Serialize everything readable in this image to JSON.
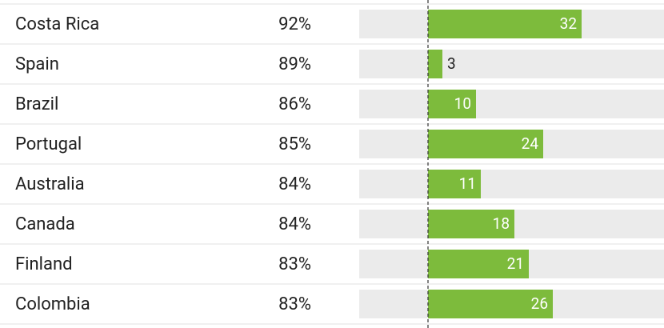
{
  "chart_data": {
    "type": "bar",
    "categories": [
      "Costa Rica",
      "Spain",
      "Brazil",
      "Portugal",
      "Australia",
      "Canada",
      "Finland",
      "Colombia"
    ],
    "shares": [
      "92%",
      "89%",
      "86%",
      "85%",
      "84%",
      "84%",
      "83%",
      "83%"
    ],
    "values": [
      32,
      3,
      10,
      24,
      11,
      18,
      21,
      26
    ],
    "color": "#7dbb3c"
  }
}
